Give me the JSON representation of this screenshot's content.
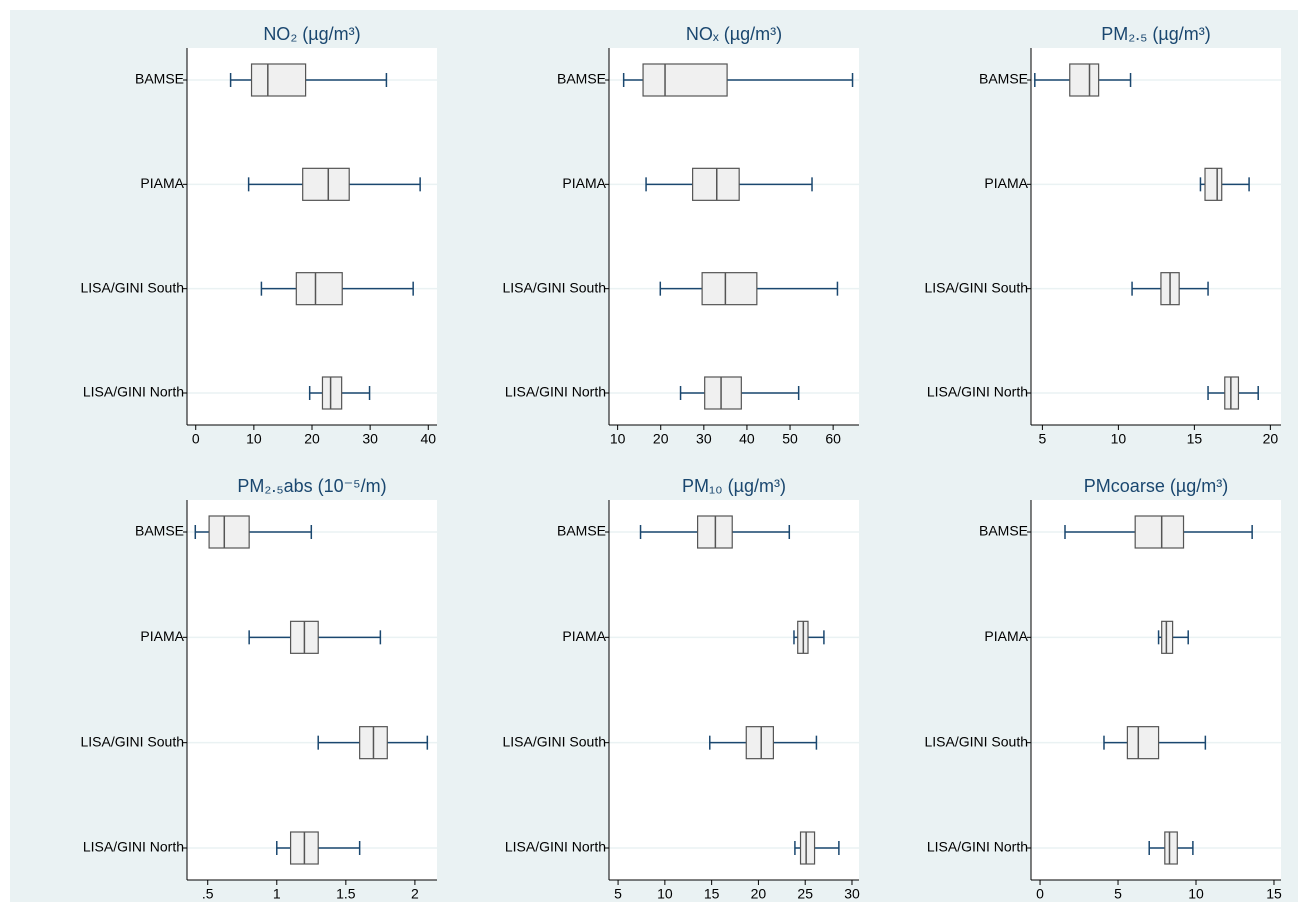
{
  "chart_data": [
    {
      "type": "boxplot",
      "title": "NO₂ (µg/m³)",
      "categories": [
        "BAMSE",
        "PIAMA",
        "LISA/GINI South",
        "LISA/GINI North"
      ],
      "whisker_low": [
        6.0,
        9.1,
        11.3,
        19.6
      ],
      "q1": [
        9.6,
        18.4,
        17.3,
        21.8
      ],
      "median": [
        12.4,
        22.8,
        20.6,
        23.2
      ],
      "q3": [
        18.9,
        26.4,
        25.2,
        25.1
      ],
      "whisker_high": [
        32.8,
        38.6,
        37.4,
        29.9
      ],
      "xlim": [
        -1.5,
        41.5
      ],
      "xticks": [
        0,
        10,
        20,
        30,
        40
      ],
      "box_color": "#f0f0f0",
      "whisker_color": "#1a476f",
      "grid": true
    },
    {
      "type": "boxplot",
      "title": "NOₓ (µg/m³)",
      "categories": [
        "BAMSE",
        "PIAMA",
        "LISA/GINI South",
        "LISA/GINI North"
      ],
      "whisker_low": [
        11.4,
        16.6,
        19.9,
        24.6
      ],
      "q1": [
        15.9,
        27.4,
        29.6,
        30.2
      ],
      "median": [
        21.0,
        33.0,
        35.0,
        34.0
      ],
      "q3": [
        35.4,
        38.2,
        42.3,
        38.7
      ],
      "whisker_high": [
        64.5,
        55.1,
        61.0,
        52.0
      ],
      "xlim": [
        8,
        66
      ],
      "xticks": [
        10,
        20,
        30,
        40,
        50,
        60
      ],
      "box_color": "#f0f0f0",
      "whisker_color": "#1a476f",
      "grid": true
    },
    {
      "type": "boxplot",
      "title": "PM₂.₅ (µg/m³)",
      "categories": [
        "BAMSE",
        "PIAMA",
        "LISA/GINI South",
        "LISA/GINI North"
      ],
      "whisker_low": [
        4.5,
        15.4,
        10.9,
        15.9
      ],
      "q1": [
        6.8,
        15.7,
        12.8,
        17.0
      ],
      "median": [
        8.1,
        16.5,
        13.4,
        17.4
      ],
      "q3": [
        8.7,
        16.8,
        14.0,
        17.9
      ],
      "whisker_high": [
        10.8,
        18.6,
        15.9,
        19.2
      ],
      "xlim": [
        4.25,
        20.7
      ],
      "xticks": [
        5,
        10,
        15,
        20
      ],
      "box_color": "#f0f0f0",
      "whisker_color": "#1a476f",
      "grid": true
    },
    {
      "type": "boxplot",
      "title": "PM₂.₅abs (10⁻⁵/m)",
      "categories": [
        "BAMSE",
        "PIAMA",
        "LISA/GINI South",
        "LISA/GINI North"
      ],
      "whisker_low": [
        0.41,
        0.8,
        1.3,
        1.0
      ],
      "q1": [
        0.51,
        1.1,
        1.6,
        1.1
      ],
      "median": [
        0.62,
        1.2,
        1.7,
        1.2
      ],
      "q3": [
        0.8,
        1.3,
        1.8,
        1.3
      ],
      "whisker_high": [
        1.25,
        1.75,
        2.09,
        1.6
      ],
      "xlim": [
        0.35,
        2.16
      ],
      "xticks": [
        {
          "value": 0.5,
          "label": ".5"
        },
        1,
        1.5,
        2
      ],
      "box_color": "#f0f0f0",
      "whisker_color": "#1a476f",
      "grid": true
    },
    {
      "type": "boxplot",
      "title": "PM₁₀ (µg/m³)",
      "categories": [
        "BAMSE",
        "PIAMA",
        "LISA/GINI South",
        "LISA/GINI North"
      ],
      "whisker_low": [
        7.4,
        23.8,
        14.8,
        23.9
      ],
      "q1": [
        13.5,
        24.2,
        18.7,
        24.5
      ],
      "median": [
        15.4,
        24.8,
        20.3,
        25.1
      ],
      "q3": [
        17.2,
        25.3,
        21.6,
        26.0
      ],
      "whisker_high": [
        23.3,
        27.0,
        26.2,
        28.6
      ],
      "xlim": [
        4.03,
        30.75
      ],
      "xticks": [
        5,
        10,
        15,
        20,
        25,
        30
      ],
      "box_color": "#f0f0f0",
      "whisker_color": "#1a476f",
      "grid": true
    },
    {
      "type": "boxplot",
      "title": "PMcoarse (µg/m³)",
      "categories": [
        "BAMSE",
        "PIAMA",
        "LISA/GINI South",
        "LISA/GINI North"
      ],
      "whisker_low": [
        1.6,
        7.6,
        4.1,
        7.0
      ],
      "q1": [
        6.1,
        7.8,
        5.6,
        8.0
      ],
      "median": [
        7.8,
        8.1,
        6.3,
        8.3
      ],
      "q3": [
        9.2,
        8.5,
        7.6,
        8.8
      ],
      "whisker_high": [
        13.6,
        9.5,
        10.6,
        9.8
      ],
      "xlim": [
        -0.58,
        15.45
      ],
      "xticks": [
        0,
        5,
        10,
        15
      ],
      "box_color": "#f0f0f0",
      "whisker_color": "#1a476f",
      "grid": true
    }
  ]
}
